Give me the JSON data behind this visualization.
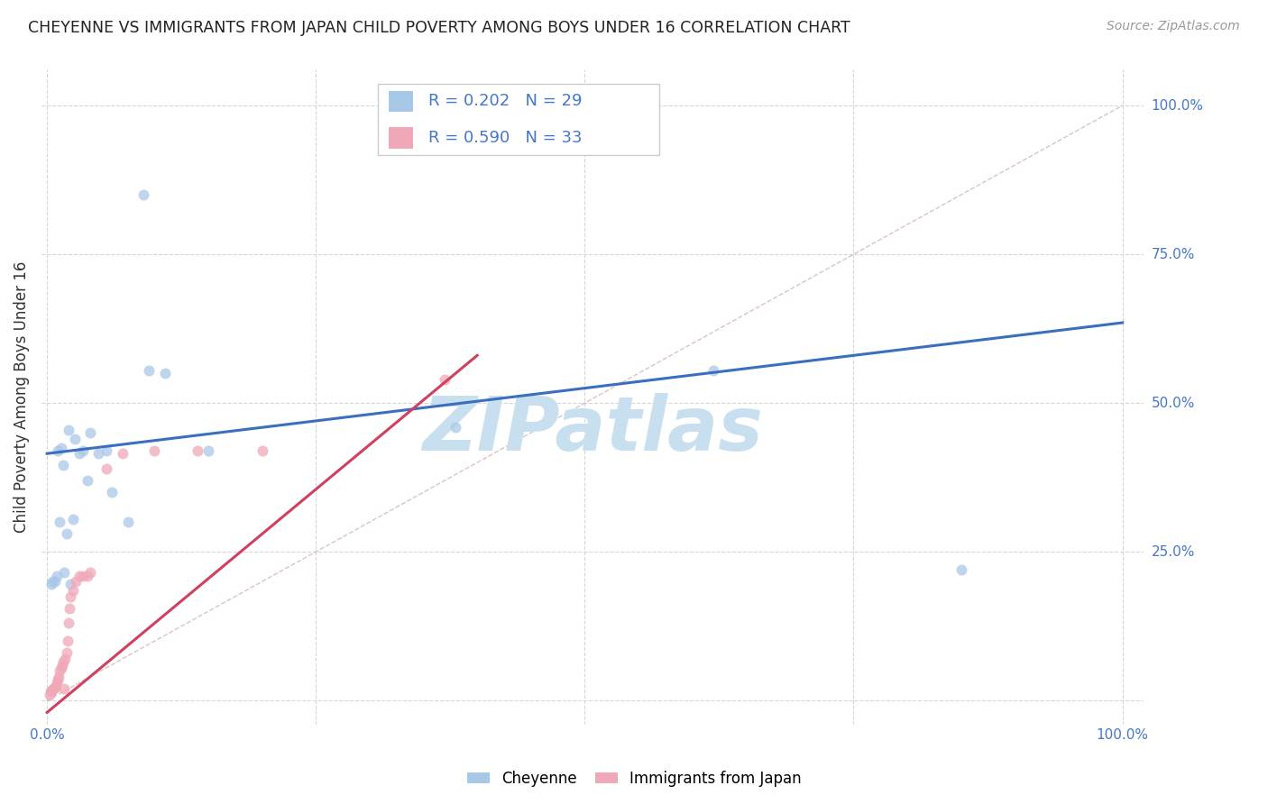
{
  "title": "CHEYENNE VS IMMIGRANTS FROM JAPAN CHILD POVERTY AMONG BOYS UNDER 16 CORRELATION CHART",
  "source": "Source: ZipAtlas.com",
  "ylabel": "Child Poverty Among Boys Under 16",
  "blue_label": "Cheyenne",
  "pink_label": "Immigrants from Japan",
  "blue_R": "R = 0.202",
  "blue_N": "N = 29",
  "pink_R": "R = 0.590",
  "pink_N": "N = 33",
  "blue_color": "#a8c8e8",
  "pink_color": "#f0a8b8",
  "blue_line_color": "#3a6fbf",
  "pink_line_color": "#d04060",
  "diag_color": "#ccaaaa",
  "watermark": "ZIPatlas",
  "watermark_color": "#c8dff0",
  "cheyenne_x": [
    0.004,
    0.005,
    0.007,
    0.009,
    0.01,
    0.012,
    0.013,
    0.015,
    0.016,
    0.018,
    0.02,
    0.022,
    0.024,
    0.026,
    0.03,
    0.033,
    0.038,
    0.04,
    0.048,
    0.055,
    0.06,
    0.075,
    0.09,
    0.095,
    0.11,
    0.15,
    0.38,
    0.62,
    0.85
  ],
  "cheyenne_y": [
    0.195,
    0.2,
    0.2,
    0.21,
    0.42,
    0.3,
    0.425,
    0.395,
    0.215,
    0.28,
    0.455,
    0.195,
    0.305,
    0.44,
    0.415,
    0.42,
    0.37,
    0.45,
    0.415,
    0.42,
    0.35,
    0.3,
    0.85,
    0.555,
    0.55,
    0.42,
    0.46,
    0.555,
    0.22
  ],
  "japan_x": [
    0.002,
    0.003,
    0.004,
    0.005,
    0.006,
    0.007,
    0.008,
    0.009,
    0.01,
    0.011,
    0.012,
    0.013,
    0.014,
    0.015,
    0.016,
    0.017,
    0.018,
    0.019,
    0.02,
    0.021,
    0.022,
    0.024,
    0.027,
    0.03,
    0.033,
    0.038,
    0.04,
    0.055,
    0.07,
    0.1,
    0.14,
    0.2,
    0.37
  ],
  "japan_y": [
    0.01,
    0.015,
    0.015,
    0.018,
    0.02,
    0.022,
    0.025,
    0.03,
    0.035,
    0.04,
    0.05,
    0.055,
    0.06,
    0.065,
    0.02,
    0.07,
    0.08,
    0.1,
    0.13,
    0.155,
    0.175,
    0.185,
    0.2,
    0.21,
    0.21,
    0.21,
    0.215,
    0.39,
    0.415,
    0.42,
    0.42,
    0.42,
    0.54
  ],
  "blue_trend_x0": 0.0,
  "blue_trend_y0": 0.415,
  "blue_trend_x1": 1.0,
  "blue_trend_y1": 0.635,
  "pink_trend_x0": 0.0,
  "pink_trend_y0": -0.02,
  "pink_trend_x1": 0.4,
  "pink_trend_y1": 0.58,
  "xlim_lo": -0.005,
  "xlim_hi": 1.02,
  "ylim_lo": -0.04,
  "ylim_hi": 1.06,
  "dot_size": 75,
  "title_fontsize": 12.5,
  "source_fontsize": 10,
  "tick_fontsize": 11,
  "legend_fontsize": 13,
  "ylabel_fontsize": 12,
  "watermark_fontsize": 60
}
